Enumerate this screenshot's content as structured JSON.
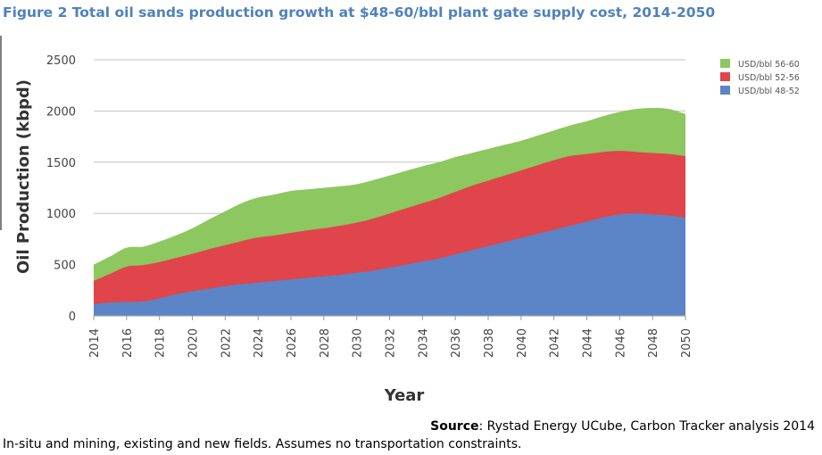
{
  "figure": {
    "title": "Figure 2 Total oil sands production growth at $48-60/bbl plant gate supply cost, 2014-2050",
    "source_label": "Source",
    "source_text": ": Rystad Energy UCube, Carbon Tracker analysis 2014",
    "footnote": "In-situ and mining, existing and new fields. Assumes no transportation constraints."
  },
  "chart_data": {
    "type": "area",
    "stacked": true,
    "xlabel": "Year",
    "ylabel": "Oil Production (kbpd)",
    "xlim": [
      2014,
      2050
    ],
    "ylim": [
      0,
      2500
    ],
    "yticks": [
      0,
      500,
      1000,
      1500,
      2000,
      2500
    ],
    "xticks": [
      2014,
      2016,
      2018,
      2020,
      2022,
      2024,
      2026,
      2028,
      2030,
      2032,
      2034,
      2036,
      2038,
      2040,
      2042,
      2044,
      2046,
      2048,
      2050
    ],
    "grid": true,
    "legend_position": "top-right",
    "x": [
      2014,
      2015,
      2016,
      2017,
      2018,
      2019,
      2020,
      2021,
      2022,
      2023,
      2024,
      2025,
      2026,
      2027,
      2028,
      2029,
      2030,
      2031,
      2032,
      2033,
      2034,
      2035,
      2036,
      2037,
      2038,
      2039,
      2040,
      2041,
      2042,
      2043,
      2044,
      2045,
      2046,
      2047,
      2048,
      2049,
      2050
    ],
    "series": [
      {
        "name": "USD/bbl 48-52",
        "color": "#5b85c6",
        "values": [
          115,
          130,
          135,
          140,
          170,
          210,
          240,
          265,
          290,
          310,
          325,
          340,
          355,
          370,
          385,
          400,
          420,
          440,
          470,
          500,
          530,
          560,
          600,
          640,
          680,
          720,
          760,
          800,
          840,
          880,
          920,
          960,
          990,
          1000,
          990,
          980,
          960
        ]
      },
      {
        "name": "USD/bbl 52-56",
        "color": "#e0454b",
        "values": [
          225,
          280,
          345,
          355,
          355,
          355,
          365,
          385,
          400,
          420,
          440,
          445,
          455,
          465,
          470,
          480,
          490,
          510,
          530,
          550,
          570,
          590,
          610,
          630,
          640,
          650,
          660,
          670,
          680,
          680,
          660,
          640,
          620,
          600,
          600,
          600,
          600
        ]
      },
      {
        "name": "USD/bbl 56-60",
        "color": "#8cc760",
        "values": [
          160,
          170,
          185,
          180,
          200,
          220,
          250,
          290,
          330,
          370,
          390,
          400,
          410,
          400,
          395,
          385,
          375,
          375,
          370,
          365,
          360,
          350,
          340,
          320,
          310,
          300,
          290,
          290,
          290,
          300,
          320,
          350,
          380,
          420,
          440,
          440,
          410
        ]
      }
    ]
  }
}
